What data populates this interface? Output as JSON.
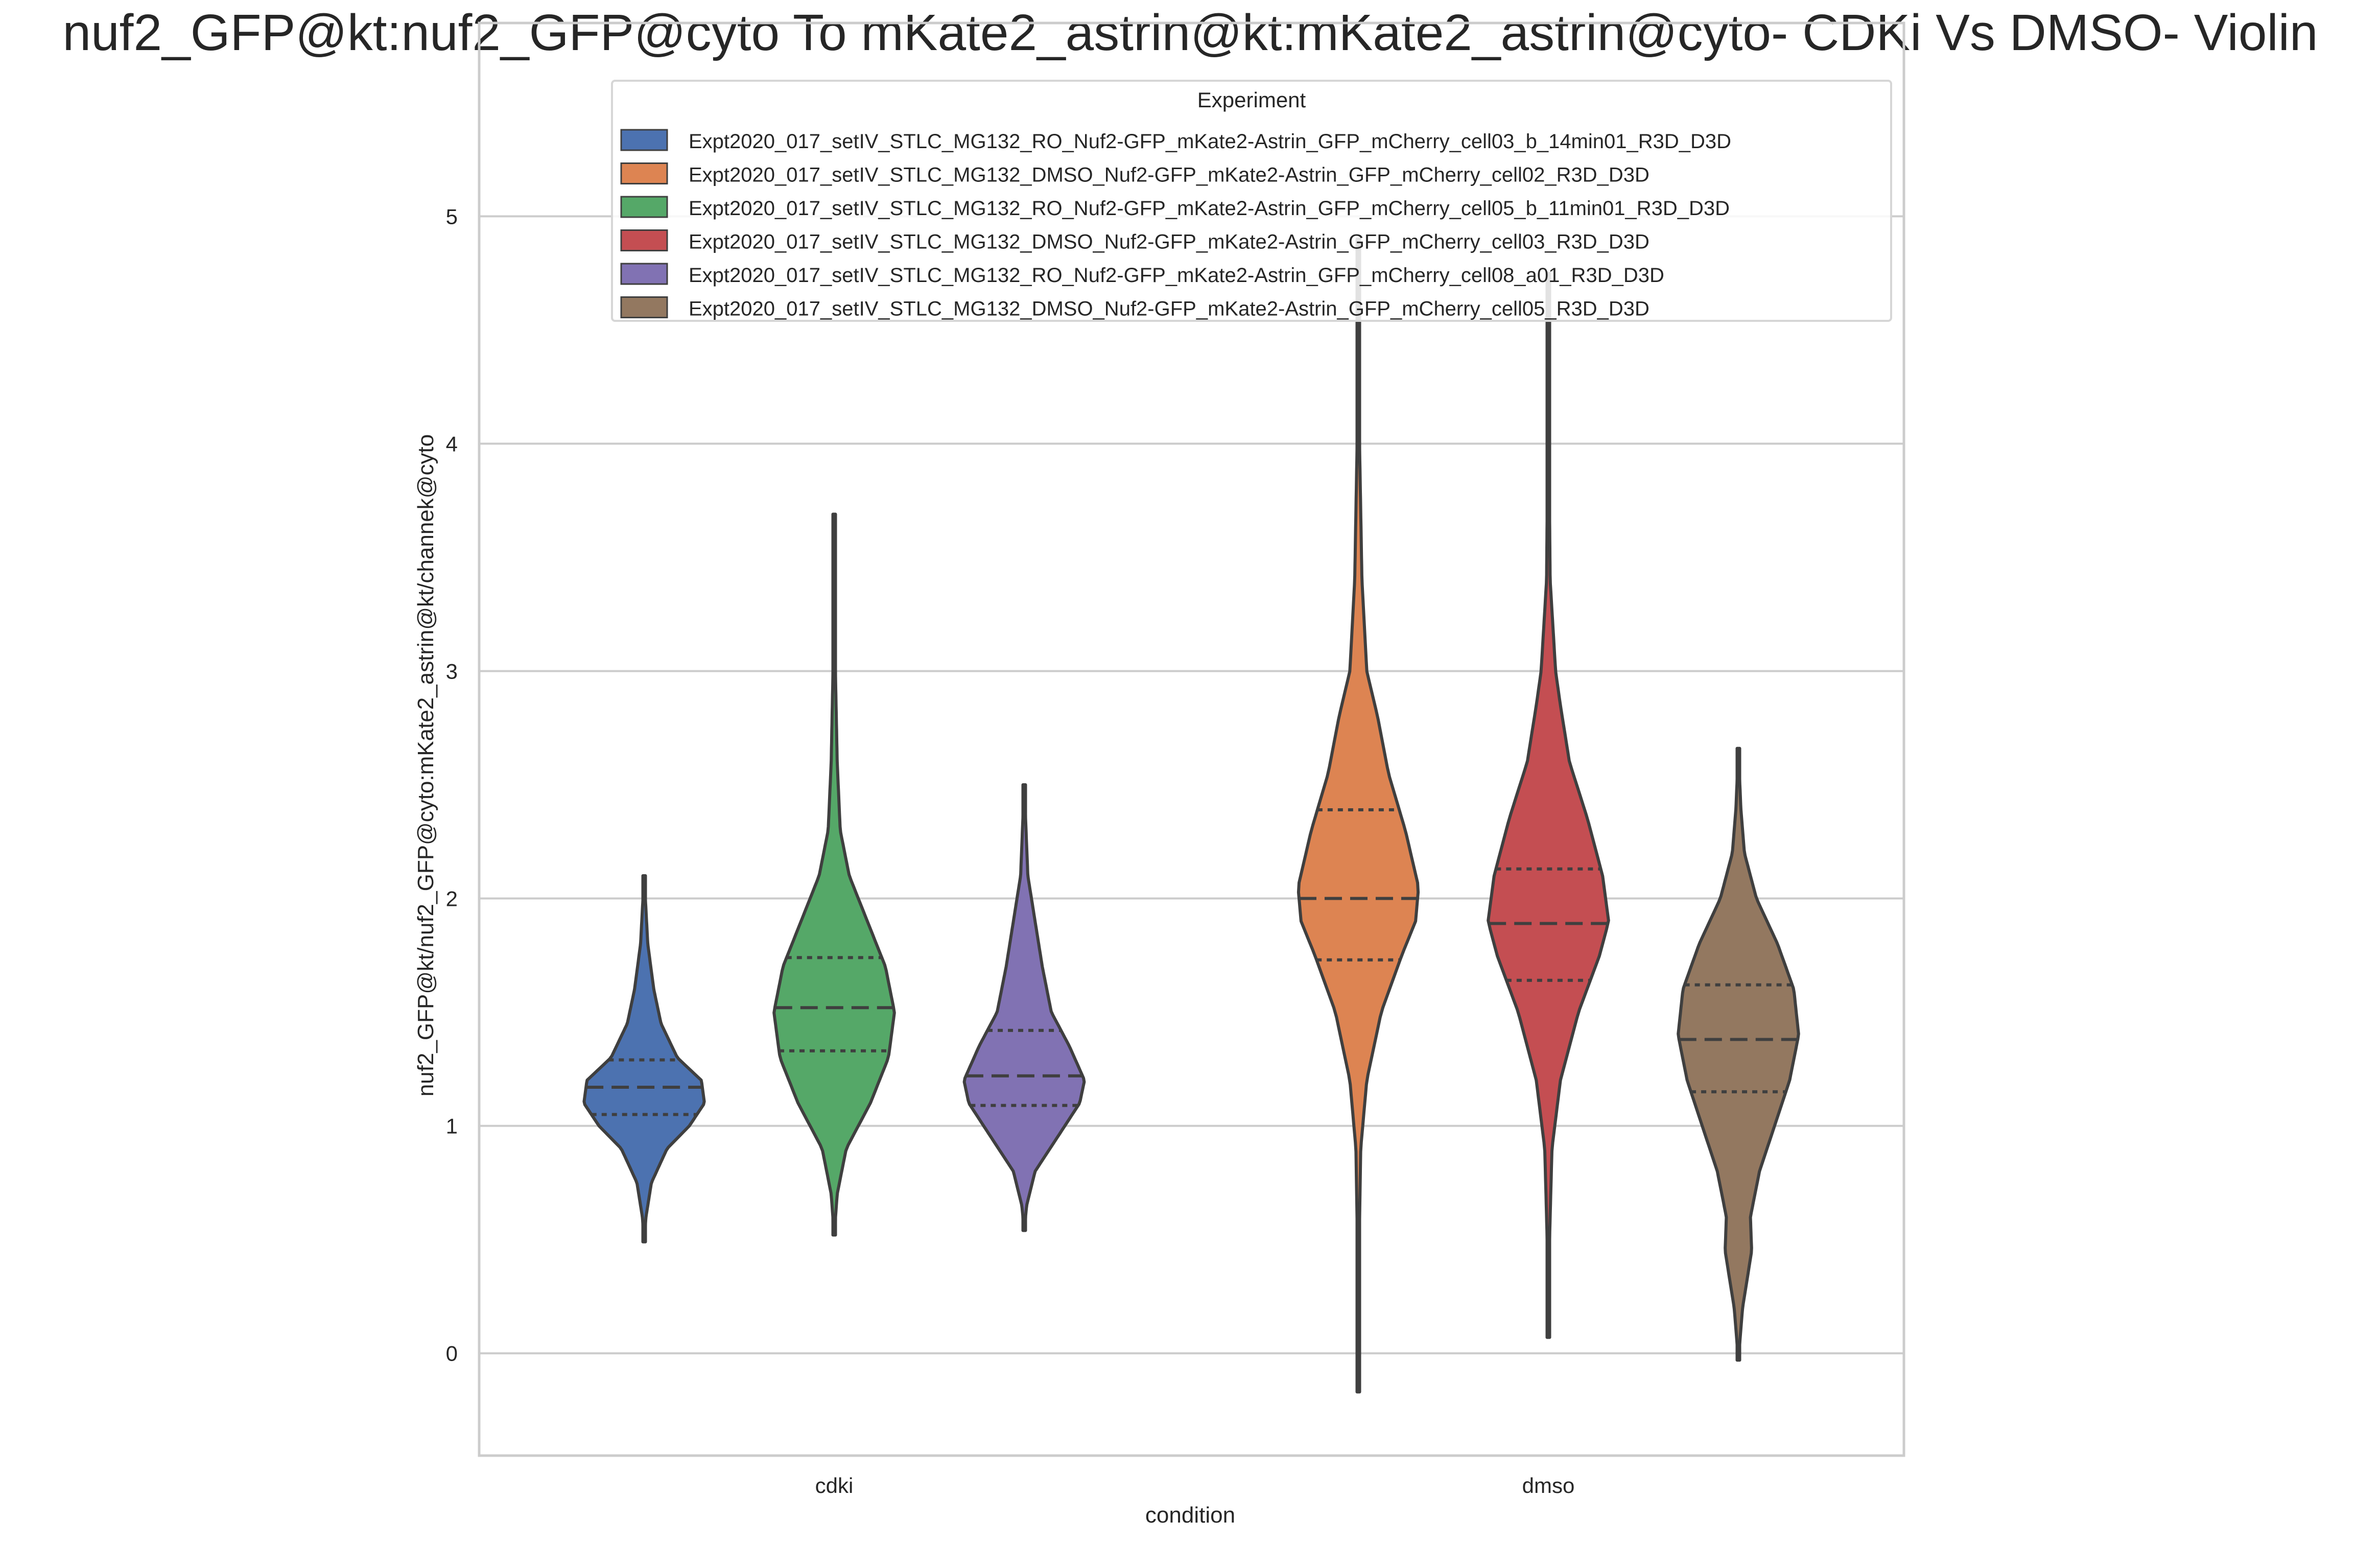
{
  "chart_data": {
    "type": "violin",
    "title": "nuf2_GFP@kt:nuf2_GFP@cyto To mKate2_astrin@kt:mKate2_astrin@cyto- CDKi Vs DMSO- Violin",
    "xlabel": "condition",
    "ylabel": "nuf2_GFP@kt/nuf2_GFP@cyto:mKate2_astrin@kt/channek@cyto",
    "ylim": [
      -0.45,
      5.85
    ],
    "yticks": [
      0,
      1,
      2,
      3,
      4,
      5
    ],
    "grid": true,
    "categories": [
      "cdki",
      "dmso"
    ],
    "legend": {
      "title": "Experiment",
      "placement": "upper-center"
    },
    "series": [
      {
        "name": "Expt2020_017_setIV_STLC_MG132_RO_Nuf2-GFP_mKate2-Astrin_GFP_mCherry_cell03_b_14min01_R3D_D3D",
        "color": "#4c72b0",
        "category": "cdki",
        "min": 0.49,
        "max": 2.1,
        "q1": 1.05,
        "median": 1.17,
        "q3": 1.29,
        "density": [
          [
            0.49,
            0.0
          ],
          [
            0.6,
            0.03
          ],
          [
            0.75,
            0.12
          ],
          [
            0.9,
            0.38
          ],
          [
            1.0,
            0.75
          ],
          [
            1.1,
            1.0
          ],
          [
            1.2,
            0.95
          ],
          [
            1.3,
            0.55
          ],
          [
            1.45,
            0.28
          ],
          [
            1.6,
            0.16
          ],
          [
            1.8,
            0.06
          ],
          [
            2.0,
            0.02
          ],
          [
            2.1,
            0.0
          ]
        ]
      },
      {
        "name": "Expt2020_017_setIV_STLC_MG132_DMSO_Nuf2-GFP_mKate2-Astrin_GFP_mCherry_cell02_R3D_D3D",
        "color": "#dd8452",
        "category": "dmso",
        "min": -0.17,
        "max": 4.9,
        "q1": 1.73,
        "median": 2.0,
        "q3": 2.39,
        "density": [
          [
            -0.17,
            0.0
          ],
          [
            0.4,
            0.01
          ],
          [
            0.9,
            0.04
          ],
          [
            1.2,
            0.14
          ],
          [
            1.5,
            0.38
          ],
          [
            1.75,
            0.72
          ],
          [
            1.9,
            0.95
          ],
          [
            2.05,
            1.0
          ],
          [
            2.3,
            0.78
          ],
          [
            2.55,
            0.5
          ],
          [
            2.8,
            0.32
          ],
          [
            3.0,
            0.14
          ],
          [
            3.4,
            0.06
          ],
          [
            4.0,
            0.02
          ],
          [
            4.9,
            0.0
          ]
        ]
      },
      {
        "name": "Expt2020_017_setIV_STLC_MG132_RO_Nuf2-GFP_mKate2-Astrin_GFP_mCherry_cell05_b_11min01_R3D_D3D",
        "color": "#55a868",
        "category": "cdki",
        "min": 0.52,
        "max": 3.69,
        "q1": 1.33,
        "median": 1.52,
        "q3": 1.74,
        "density": [
          [
            0.52,
            0.0
          ],
          [
            0.7,
            0.05
          ],
          [
            0.9,
            0.2
          ],
          [
            1.1,
            0.6
          ],
          [
            1.3,
            0.9
          ],
          [
            1.5,
            1.0
          ],
          [
            1.7,
            0.85
          ],
          [
            1.9,
            0.55
          ],
          [
            2.1,
            0.25
          ],
          [
            2.3,
            0.1
          ],
          [
            2.6,
            0.05
          ],
          [
            3.0,
            0.02
          ],
          [
            3.69,
            0.0
          ]
        ]
      },
      {
        "name": "Expt2020_017_setIV_STLC_MG132_DMSO_Nuf2-GFP_mKate2-Astrin_GFP_mCherry_cell03_R3D_D3D",
        "color": "#c44e52",
        "category": "dmso",
        "min": 0.07,
        "max": 4.75,
        "q1": 1.64,
        "median": 1.89,
        "q3": 2.13,
        "density": [
          [
            0.07,
            0.0
          ],
          [
            0.5,
            0.02
          ],
          [
            0.9,
            0.06
          ],
          [
            1.2,
            0.2
          ],
          [
            1.5,
            0.5
          ],
          [
            1.75,
            0.85
          ],
          [
            1.9,
            1.0
          ],
          [
            2.1,
            0.9
          ],
          [
            2.35,
            0.65
          ],
          [
            2.6,
            0.35
          ],
          [
            2.85,
            0.2
          ],
          [
            3.0,
            0.12
          ],
          [
            3.4,
            0.03
          ],
          [
            4.0,
            0.01
          ],
          [
            4.75,
            0.0
          ]
        ]
      },
      {
        "name": "Expt2020_017_setIV_STLC_MG132_RO_Nuf2-GFP_mKate2-Astrin_GFP_mCherry_cell08_a01_R3D_D3D",
        "color": "#8172b3",
        "category": "cdki",
        "min": 0.54,
        "max": 2.5,
        "q1": 1.09,
        "median": 1.22,
        "q3": 1.42,
        "density": [
          [
            0.54,
            0.0
          ],
          [
            0.65,
            0.04
          ],
          [
            0.8,
            0.18
          ],
          [
            0.95,
            0.55
          ],
          [
            1.1,
            0.92
          ],
          [
            1.2,
            1.0
          ],
          [
            1.35,
            0.75
          ],
          [
            1.5,
            0.45
          ],
          [
            1.7,
            0.3
          ],
          [
            1.9,
            0.18
          ],
          [
            2.1,
            0.06
          ],
          [
            2.3,
            0.03
          ],
          [
            2.5,
            0.0
          ]
        ]
      },
      {
        "name": "Expt2020_017_setIV_STLC_MG132_DMSO_Nuf2-GFP_mKate2-Astrin_GFP_mCherry_cell05_R3D_D3D",
        "color": "#937860",
        "category": "dmso",
        "min": -0.03,
        "max": 2.66,
        "q1": 1.15,
        "median": 1.38,
        "q3": 1.62,
        "density": [
          [
            -0.03,
            0.0
          ],
          [
            0.2,
            0.07
          ],
          [
            0.45,
            0.22
          ],
          [
            0.6,
            0.2
          ],
          [
            0.8,
            0.35
          ],
          [
            1.0,
            0.6
          ],
          [
            1.2,
            0.85
          ],
          [
            1.4,
            1.0
          ],
          [
            1.6,
            0.92
          ],
          [
            1.8,
            0.65
          ],
          [
            2.0,
            0.3
          ],
          [
            2.2,
            0.1
          ],
          [
            2.4,
            0.04
          ],
          [
            2.66,
            0.0
          ]
        ]
      }
    ]
  }
}
